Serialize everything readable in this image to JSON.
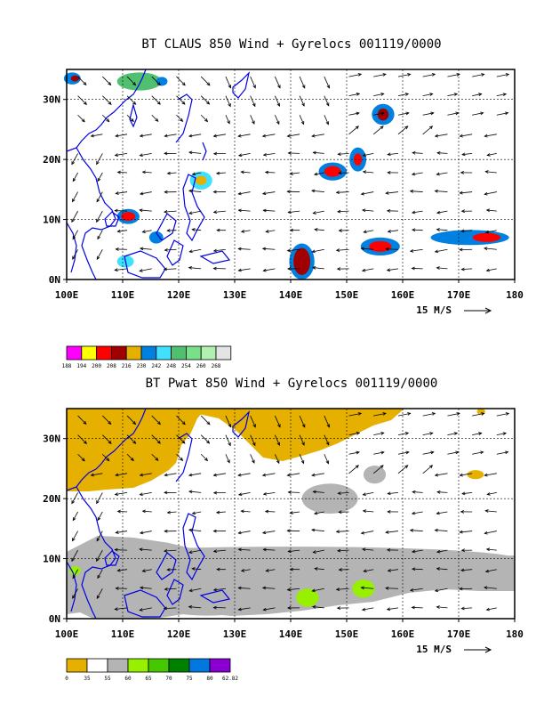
{
  "chart_data": [
    {
      "type": "heatmap",
      "title": "BT CLAUS 850 Wind + Gyrelocs 001119/0000",
      "x_ticks": [
        "100E",
        "110E",
        "120E",
        "130E",
        "140E",
        "150E",
        "160E",
        "170E",
        "180"
      ],
      "y_ticks": [
        "0N",
        "10N",
        "20N",
        "30N"
      ],
      "xlim": [
        100,
        180
      ],
      "ylim": [
        0,
        35
      ],
      "grid": true,
      "wind_scale_label": "15 M/S",
      "color_key": {
        "labels": [
          "188",
          "194",
          "200",
          "208",
          "216",
          "230",
          "242",
          "248",
          "254",
          "260",
          "268"
        ],
        "colors": [
          "#ff00ff",
          "#ffff00",
          "#ff0000",
          "#a00000",
          "#e6b000",
          "#0080e0",
          "#40e0ff",
          "#50c070",
          "#78e088",
          "#b0f0b0",
          "#e4e4e4"
        ]
      },
      "cells": [
        {
          "lon": 101,
          "lat": 33.5,
          "w": 3,
          "h": 2,
          "level": 5
        },
        {
          "lon": 101.5,
          "lat": 33.5,
          "w": 1.5,
          "h": 1,
          "level": 3
        },
        {
          "lon": 113,
          "lat": 33,
          "w": 8,
          "h": 3,
          "level": 7
        },
        {
          "lon": 117,
          "lat": 33,
          "w": 2,
          "h": 1.5,
          "level": 5
        },
        {
          "lon": 111,
          "lat": 10.5,
          "w": 4,
          "h": 2.5,
          "level": 5
        },
        {
          "lon": 111,
          "lat": 10.5,
          "w": 2.5,
          "h": 1.5,
          "level": 2
        },
        {
          "lon": 124,
          "lat": 16.5,
          "w": 4,
          "h": 3,
          "level": 6
        },
        {
          "lon": 124,
          "lat": 16.5,
          "w": 2,
          "h": 1.5,
          "level": 4
        },
        {
          "lon": 116,
          "lat": 7,
          "w": 2.5,
          "h": 2,
          "level": 5
        },
        {
          "lon": 147.5,
          "lat": 18,
          "w": 5,
          "h": 3,
          "level": 5
        },
        {
          "lon": 147.5,
          "lat": 18,
          "w": 3,
          "h": 1.8,
          "level": 2
        },
        {
          "lon": 152,
          "lat": 20,
          "w": 3,
          "h": 4,
          "level": 5
        },
        {
          "lon": 152,
          "lat": 20,
          "w": 1.5,
          "h": 2,
          "level": 2
        },
        {
          "lon": 156.5,
          "lat": 27.5,
          "w": 4,
          "h": 3.5,
          "level": 5
        },
        {
          "lon": 156.5,
          "lat": 27.5,
          "w": 2,
          "h": 2,
          "level": 3
        },
        {
          "lon": 142,
          "lat": 3,
          "w": 4.5,
          "h": 6,
          "level": 5
        },
        {
          "lon": 142,
          "lat": 3,
          "w": 3,
          "h": 4.5,
          "level": 3
        },
        {
          "lon": 156,
          "lat": 5.5,
          "w": 7,
          "h": 3,
          "level": 5
        },
        {
          "lon": 156,
          "lat": 5.5,
          "w": 4,
          "h": 1.8,
          "level": 2
        },
        {
          "lon": 172,
          "lat": 7,
          "w": 14,
          "h": 2.5,
          "level": 5
        },
        {
          "lon": 175,
          "lat": 7,
          "w": 5,
          "h": 1.5,
          "level": 2
        },
        {
          "lon": 110.5,
          "lat": 3,
          "w": 3,
          "h": 2,
          "level": 6
        }
      ]
    },
    {
      "type": "heatmap",
      "title": "BT Pwat 850 Wind + Gyrelocs 001119/0000",
      "x_ticks": [
        "100E",
        "110E",
        "120E",
        "130E",
        "140E",
        "150E",
        "160E",
        "170E",
        "180"
      ],
      "y_ticks": [
        "0N",
        "10N",
        "20N",
        "30N"
      ],
      "xlim": [
        100,
        180
      ],
      "ylim": [
        0,
        35
      ],
      "grid": true,
      "wind_scale_label": "15 M/S",
      "color_key": {
        "labels": [
          "0",
          "35",
          "55",
          "60",
          "65",
          "70",
          "75",
          "80",
          "62.82"
        ],
        "colors": [
          "#e6b000",
          "#ffffff",
          "#b4b4b4",
          "#96f000",
          "#46c800",
          "#008000",
          "#0078e0",
          "#8a00d2"
        ]
      },
      "cells": [
        {
          "lon": 140,
          "lat": 10,
          "w": 80,
          "h": 4,
          "level": 2
        },
        {
          "lon": 147,
          "lat": 20,
          "w": 10,
          "h": 5,
          "level": 2
        },
        {
          "lon": 155,
          "lat": 24,
          "w": 4,
          "h": 3,
          "level": 2
        },
        {
          "lon": 125,
          "lat": 3,
          "w": 20,
          "h": 5,
          "level": 2
        },
        {
          "lon": 143,
          "lat": 3.5,
          "w": 4,
          "h": 3,
          "level": 3
        },
        {
          "lon": 153,
          "lat": 5,
          "w": 4,
          "h": 3,
          "level": 3
        },
        {
          "lon": 101.5,
          "lat": 8,
          "w": 2,
          "h": 1.5,
          "level": 3
        },
        {
          "lon": 173,
          "lat": 24,
          "w": 3,
          "h": 1.5,
          "level": 0
        },
        {
          "lon": 174,
          "lat": 34.5,
          "w": 1.5,
          "h": 1,
          "level": 0
        }
      ]
    }
  ]
}
